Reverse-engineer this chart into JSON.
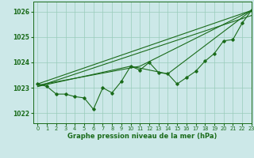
{
  "xlabel": "Graphe pression niveau de la mer (hPa)",
  "xlim": [
    -0.5,
    23
  ],
  "ylim": [
    1021.6,
    1026.4
  ],
  "yticks": [
    1022,
    1023,
    1024,
    1025,
    1026
  ],
  "xticks": [
    0,
    1,
    2,
    3,
    4,
    5,
    6,
    7,
    8,
    9,
    10,
    11,
    12,
    13,
    14,
    15,
    16,
    17,
    18,
    19,
    20,
    21,
    22,
    23
  ],
  "background_color": "#cce8e8",
  "grid_color": "#99ccbb",
  "line_color": "#1a6b1a",
  "series_main_x": [
    0,
    1,
    2,
    3,
    4,
    5,
    6,
    7,
    8,
    9,
    10,
    11,
    12,
    13,
    14,
    15,
    16,
    17,
    18,
    19,
    20,
    21,
    22,
    23
  ],
  "series_main_y": [
    1023.15,
    1023.05,
    1022.75,
    1022.75,
    1022.65,
    1022.6,
    1022.15,
    1023.0,
    1022.8,
    1023.25,
    1023.85,
    1023.7,
    1024.0,
    1023.6,
    1023.55,
    1023.15,
    1023.4,
    1023.65,
    1024.05,
    1024.35,
    1024.85,
    1024.9,
    1025.55,
    1026.05
  ],
  "trend1_x": [
    0,
    23
  ],
  "trend1_y": [
    1023.15,
    1026.05
  ],
  "trend2_x": [
    0,
    23
  ],
  "trend2_y": [
    1023.05,
    1025.85
  ],
  "trend3_x": [
    0,
    10,
    14,
    23
  ],
  "trend3_y": [
    1023.05,
    1023.85,
    1023.55,
    1026.05
  ],
  "trend4_x": [
    0,
    11,
    23
  ],
  "trend4_y": [
    1023.1,
    1023.85,
    1026.05
  ]
}
